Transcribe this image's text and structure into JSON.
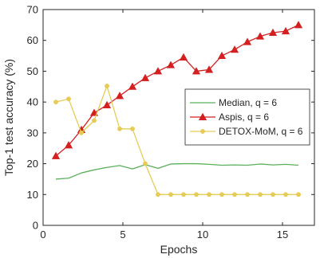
{
  "chart_data": {
    "type": "line",
    "xlabel": "Epochs",
    "ylabel": "Top-1 test accuracy (%)",
    "xlim": [
      0,
      17
    ],
    "ylim": [
      0,
      70
    ],
    "xticks": [
      0,
      5,
      10,
      15
    ],
    "yticks": [
      0,
      10,
      20,
      30,
      40,
      50,
      60,
      70
    ],
    "grid": false,
    "legend_position": "center-right",
    "series": [
      {
        "name": "Median, q = 6",
        "color": "#5bb05b",
        "marker": "none",
        "x": [
          0.8,
          1.6,
          2.4,
          3.2,
          4.0,
          4.8,
          5.6,
          6.4,
          7.2,
          8.0,
          8.8,
          9.6,
          10.4,
          11.2,
          12.0,
          12.8,
          13.6,
          14.4,
          15.2,
          16.0
        ],
        "y": [
          15.0,
          15.3,
          17.0,
          18.0,
          18.8,
          19.4,
          18.3,
          19.7,
          18.5,
          19.9,
          20.0,
          20.0,
          19.8,
          19.5,
          19.6,
          19.5,
          19.9,
          19.6,
          19.8,
          19.5
        ]
      },
      {
        "name": "Aspis, q = 6",
        "color": "#d42020",
        "marker": "triangle",
        "x": [
          0.8,
          1.6,
          2.4,
          3.2,
          4.0,
          4.8,
          5.6,
          6.4,
          7.2,
          8.0,
          8.8,
          9.6,
          10.4,
          11.2,
          12.0,
          12.8,
          13.6,
          14.4,
          15.2,
          16.0
        ],
        "y": [
          22.5,
          26.0,
          31.0,
          36.5,
          39.0,
          42.0,
          45.0,
          47.8,
          50.0,
          52.0,
          54.5,
          50.0,
          50.5,
          55.0,
          57.0,
          59.5,
          61.3,
          62.5,
          63.0,
          65.0
        ]
      },
      {
        "name": "DETOX-MoM, q = 6",
        "color": "#e6cc55",
        "marker": "circle",
        "x": [
          0.8,
          1.6,
          2.4,
          3.2,
          4.0,
          4.8,
          5.6,
          6.4,
          7.2,
          8.0,
          8.8,
          9.6,
          10.4,
          11.2,
          12.0,
          12.8,
          13.6,
          14.4,
          15.2,
          16.0
        ],
        "y": [
          40.0,
          41.0,
          30.0,
          34.0,
          45.2,
          31.3,
          31.3,
          20.0,
          10.0,
          10.0,
          10.0,
          10.0,
          10.0,
          10.0,
          10.0,
          10.0,
          10.0,
          10.0,
          10.0,
          10.0
        ]
      }
    ]
  }
}
